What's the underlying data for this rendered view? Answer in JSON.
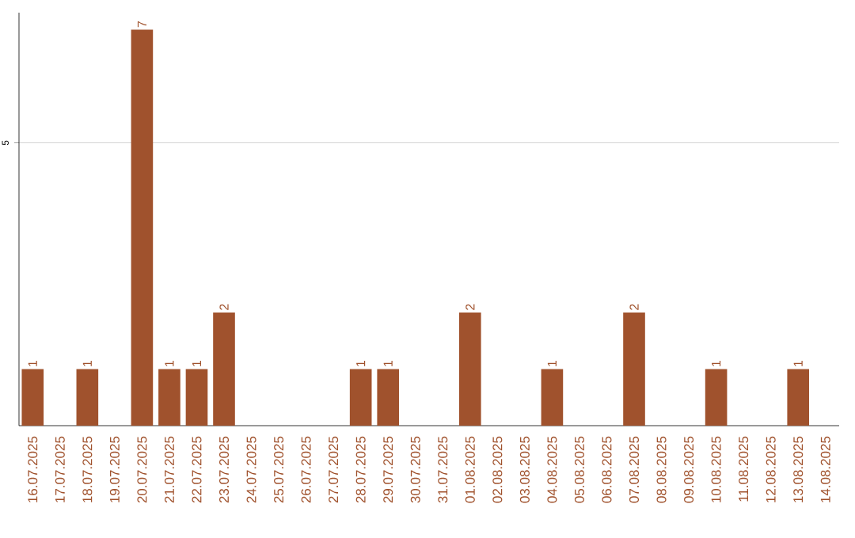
{
  "chart_data": {
    "type": "bar",
    "categories": [
      "16.07.2025",
      "17.07.2025",
      "18.07.2025",
      "19.07.2025",
      "20.07.2025",
      "21.07.2025",
      "22.07.2025",
      "23.07.2025",
      "24.07.2025",
      "25.07.2025",
      "26.07.2025",
      "27.07.2025",
      "28.07.2025",
      "29.07.2025",
      "30.07.2025",
      "31.07.2025",
      "01.08.2025",
      "02.08.2025",
      "03.08.2025",
      "04.08.2025",
      "05.08.2025",
      "06.08.2025",
      "07.08.2025",
      "08.08.2025",
      "09.08.2025",
      "10.08.2025",
      "11.08.2025",
      "12.08.2025",
      "13.08.2025",
      "14.08.2025"
    ],
    "values": [
      1,
      0,
      1,
      0,
      7,
      1,
      1,
      2,
      0,
      0,
      0,
      0,
      1,
      1,
      0,
      0,
      2,
      0,
      0,
      1,
      0,
      0,
      2,
      0,
      0,
      1,
      0,
      0,
      1,
      0
    ],
    "value_labels": [
      "1",
      null,
      "1",
      null,
      "7",
      "1",
      "1",
      "2",
      null,
      null,
      null,
      null,
      "1",
      "1",
      null,
      null,
      "2",
      null,
      null,
      "1",
      null,
      null,
      "2",
      null,
      null,
      "1",
      null,
      null,
      "1",
      null
    ],
    "color": "#a0522d",
    "ylim": [
      0,
      7.3
    ],
    "yticks": [
      5
    ],
    "grid": "y"
  }
}
